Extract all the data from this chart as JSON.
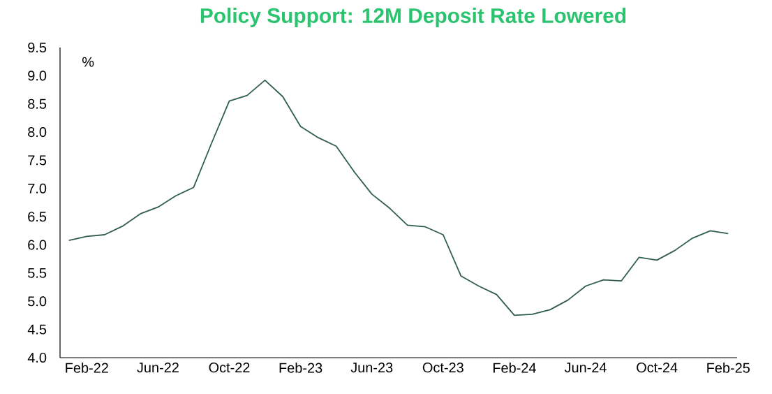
{
  "chart_data": {
    "type": "line",
    "title": "Policy Support: 12M Deposit Rate Lowered",
    "annotations": [
      "%"
    ],
    "categories": [
      null,
      "Feb-22",
      null,
      null,
      null,
      "Jun-22",
      null,
      null,
      null,
      "Oct-22",
      null,
      null,
      null,
      "Feb-23",
      null,
      null,
      null,
      "Jun-23",
      null,
      null,
      null,
      "Oct-23",
      null,
      null,
      null,
      "Feb-24",
      null,
      null,
      null,
      "Jun-24",
      null,
      null,
      null,
      "Oct-24",
      null,
      null,
      null,
      "Feb-25"
    ],
    "series": [
      {
        "color": "#2f5d4f",
        "values": [
          6.08,
          6.15,
          6.18,
          6.33,
          6.55,
          6.67,
          6.87,
          7.02,
          7.8,
          8.55,
          8.65,
          8.92,
          8.63,
          8.1,
          7.9,
          7.75,
          7.3,
          6.9,
          6.65,
          6.35,
          6.32,
          6.18,
          5.45,
          5.27,
          5.12,
          4.75,
          4.77,
          4.85,
          5.02,
          5.27,
          5.38,
          5.36,
          5.78,
          5.73,
          5.9,
          6.12,
          6.25,
          6.2
        ]
      }
    ],
    "ylim": [
      4.0,
      9.5
    ],
    "yticks": [
      {
        "value": 4.0,
        "label": "4.0"
      },
      {
        "value": 4.5,
        "label": "4.5"
      },
      {
        "value": 5.0,
        "label": "5.0"
      },
      {
        "value": 5.5,
        "label": "5.5"
      },
      {
        "value": 6.0,
        "label": "6.0"
      },
      {
        "value": 6.5,
        "label": "6.5"
      },
      {
        "value": 7.0,
        "label": "7.0"
      },
      {
        "value": 7.5,
        "label": "7.5"
      },
      {
        "value": 8.0,
        "label": "8.0"
      },
      {
        "value": 8.5,
        "label": "8.5"
      },
      {
        "value": 9.0,
        "label": "9.0"
      },
      {
        "value": 9.5,
        "label": "9.5"
      }
    ],
    "grid": false,
    "marker": "none",
    "line_style": "solid"
  }
}
